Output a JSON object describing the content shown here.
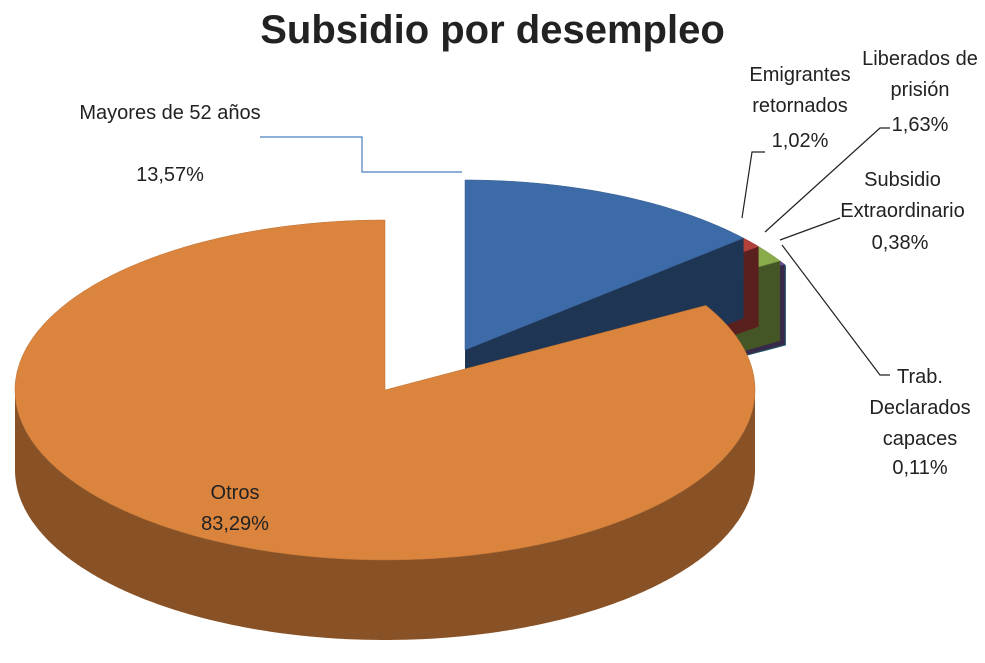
{
  "chart_data": {
    "type": "pie",
    "title": "Subsidio por desempleo",
    "categories": [
      "Mayores de 52 años",
      "Emigrantes retornados",
      "Liberados de prisión",
      "Subsidio Extraordinario",
      "Trab. Declarados capaces",
      "Otros"
    ],
    "values": [
      13.57,
      1.02,
      1.63,
      0.38,
      0.11,
      83.29
    ],
    "value_labels": [
      "13,57%",
      "1,02%",
      "1,63%",
      "0,38%",
      "0,11%",
      "83,29%"
    ],
    "colors": [
      "#3c6ba8",
      "#b2403b",
      "#8aab4c",
      "#6b5192",
      "#43a3c9",
      "#db843d"
    ]
  }
}
